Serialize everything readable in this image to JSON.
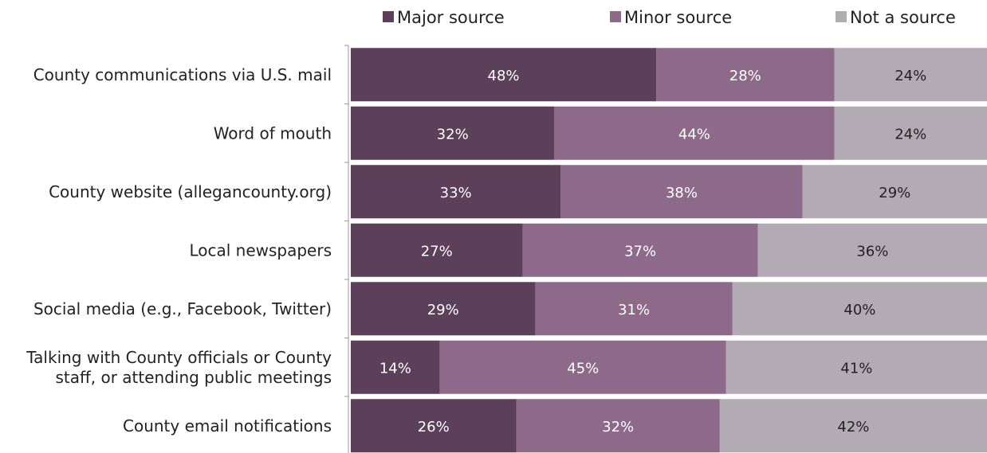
{
  "chart_data": {
    "type": "bar",
    "orientation": "horizontal",
    "stacked": true,
    "percent": true,
    "legend_position": "top",
    "grid": false,
    "xlim": [
      0,
      100
    ],
    "categories": [
      [
        "County communications via U.S. mail"
      ],
      [
        "Word of mouth"
      ],
      [
        "County website (allegancounty.org)"
      ],
      [
        "Local newspapers"
      ],
      [
        "Social media (e.g., Facebook, Twitter)"
      ],
      [
        "Talking with County officials or County",
        "staff, or attending public meetings"
      ],
      [
        "County email notifications"
      ]
    ],
    "series": [
      {
        "name": "Major source",
        "color": "#5c3f58",
        "text_color": "#ffffff",
        "values": [
          48,
          32,
          33,
          27,
          29,
          14,
          26
        ]
      },
      {
        "name": "Minor source",
        "color": "#8e6a8a",
        "text_color": "#ffffff",
        "values": [
          28,
          44,
          38,
          37,
          31,
          45,
          32
        ]
      },
      {
        "name": "Not a source",
        "color": "#b3abb3",
        "text_color": "#222222",
        "values": [
          24,
          24,
          29,
          36,
          40,
          41,
          42
        ]
      }
    ],
    "value_suffix": "%"
  }
}
